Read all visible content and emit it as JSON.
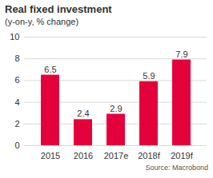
{
  "chart_data": {
    "type": "bar",
    "title": "Real fixed investment",
    "subtitle": "(y-on-y, % change)",
    "caption": "Source: Macrobond",
    "categories": [
      "2015",
      "2016",
      "2017e",
      "2018f",
      "2019f"
    ],
    "values": [
      6.5,
      2.4,
      2.9,
      5.9,
      7.9
    ],
    "color": "#e4003b",
    "ylim": [
      0,
      10
    ],
    "yticks": [
      0,
      2,
      4,
      6,
      8,
      10
    ],
    "grid": true,
    "data_labels": true
  }
}
